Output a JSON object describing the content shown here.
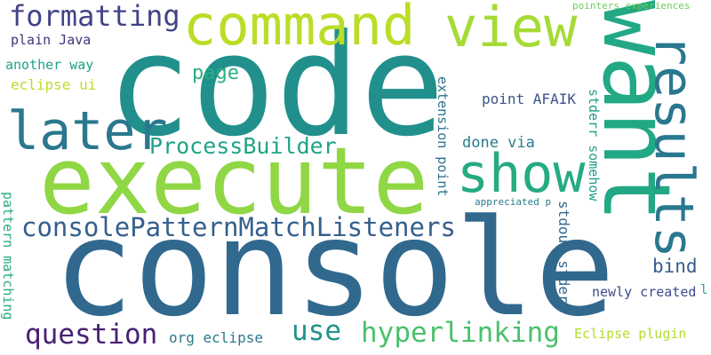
{
  "words": {
    "code": {
      "text": "code",
      "color": "#21908d"
    },
    "console": {
      "text": "console",
      "color": "#31688e"
    },
    "execute": {
      "text": "execute",
      "color": "#8fd744"
    },
    "want": {
      "text": "want",
      "color": "#22a884"
    },
    "command": {
      "text": "command",
      "color": "#bade28"
    },
    "view": {
      "text": "view",
      "color": "#a5db36"
    },
    "formatting": {
      "text": "formatting",
      "color": "#414487"
    },
    "later": {
      "text": "later",
      "color": "#2a788e"
    },
    "show": {
      "text": "show",
      "color": "#25ab82"
    },
    "results": {
      "text": "results",
      "color": "#2a788e"
    },
    "consolePatternMatchListeners": {
      "text": "consolePatternMatchListeners",
      "color": "#35608d"
    },
    "ProcessBuilder": {
      "text": "ProcessBuilder",
      "color": "#20a386"
    },
    "hyperlinking": {
      "text": "hyperlinking",
      "color": "#4ac16d"
    },
    "question": {
      "text": "question",
      "color": "#482173"
    },
    "use": {
      "text": "use",
      "color": "#20938c"
    },
    "page": {
      "text": "page",
      "color": "#2ab07f"
    },
    "plain_java": {
      "text": "plain Java",
      "color": "#46337e"
    },
    "another_way": {
      "text": "another way",
      "color": "#1fa187"
    },
    "eclipse_ui": {
      "text": "eclipse ui",
      "color": "#bade28"
    },
    "pointers_experiences": {
      "text": "pointers experiences",
      "color": "#6ccd5a"
    },
    "point_afaik": {
      "text": "point AFAIK",
      "color": "#3b528b"
    },
    "done_via": {
      "text": "done via",
      "color": "#297a8e"
    },
    "extension_point": {
      "text": "extension point",
      "color": "#2c728e"
    },
    "stderr_somehow": {
      "text": "stderr somehow",
      "color": "#1f9e89"
    },
    "appreciated_p": {
      "text": "appreciated p",
      "color": "#287d8e"
    },
    "bind": {
      "text": "bind",
      "color": "#365d8d"
    },
    "pattern_matching": {
      "text": "pattern matching",
      "color": "#27ad81"
    },
    "stdout_stderr": {
      "text": "stdout stderr",
      "color": "#31688e"
    },
    "newly_created": {
      "text": "newly created",
      "color": "#3e4a89"
    },
    "org_eclipse": {
      "text": "org eclipse",
      "color": "#2a788e"
    },
    "eclipse_plugin": {
      "text": "Eclipse plugin",
      "color": "#b2dd2d"
    },
    "small_l": {
      "text": "l",
      "color": "#22a884"
    }
  }
}
